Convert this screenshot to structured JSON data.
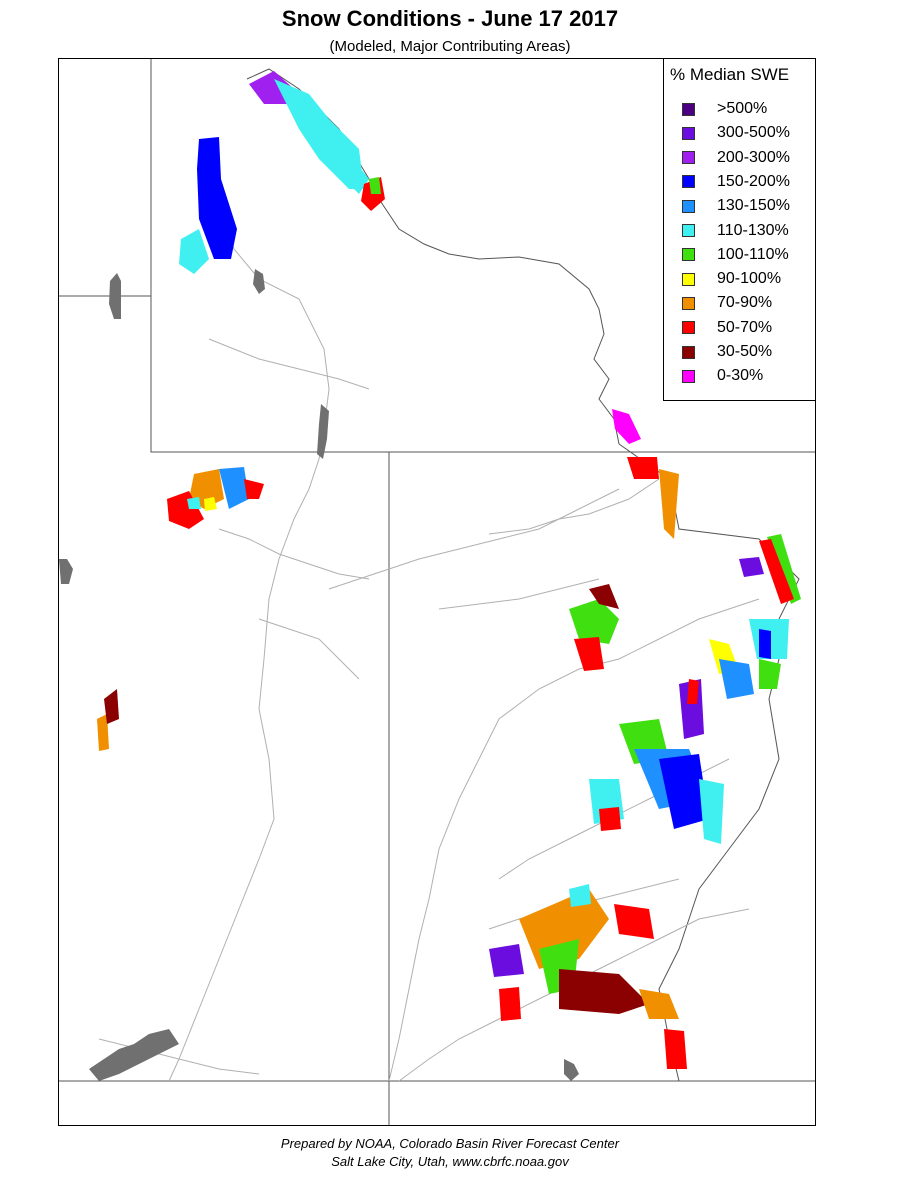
{
  "header": {
    "title": "Snow Conditions - June 17 2017",
    "subtitle": "(Modeled, Major Contributing Areas)"
  },
  "legend": {
    "title": "% Median SWE",
    "items": [
      {
        "label": ">500%",
        "color": "#4b0082"
      },
      {
        "label": "300-500%",
        "color": "#6a0dde"
      },
      {
        "label": "200-300%",
        "color": "#a020f0"
      },
      {
        "label": "150-200%",
        "color": "#0000ff"
      },
      {
        "label": "130-150%",
        "color": "#1e90ff"
      },
      {
        "label": "110-130%",
        "color": "#40f0f0"
      },
      {
        "label": "100-110%",
        "color": "#40e010"
      },
      {
        "label": "90-100%",
        "color": "#ffff00"
      },
      {
        "label": "70-90%",
        "color": "#f09000"
      },
      {
        "label": "50-70%",
        "color": "#ff0000"
      },
      {
        "label": "30-50%",
        "color": "#8b0000"
      },
      {
        "label": "0-30%",
        "color": "#ff00ff"
      }
    ]
  },
  "footer": {
    "line1": "Prepared by NOAA, Colorado Basin River Forecast Center",
    "line2": "Salt Lake City, Utah, www.cbrfc.noaa.gov"
  },
  "map": {
    "border_color": "#555555",
    "river_color": "#b0b0b0",
    "lake_color": "#707070"
  }
}
